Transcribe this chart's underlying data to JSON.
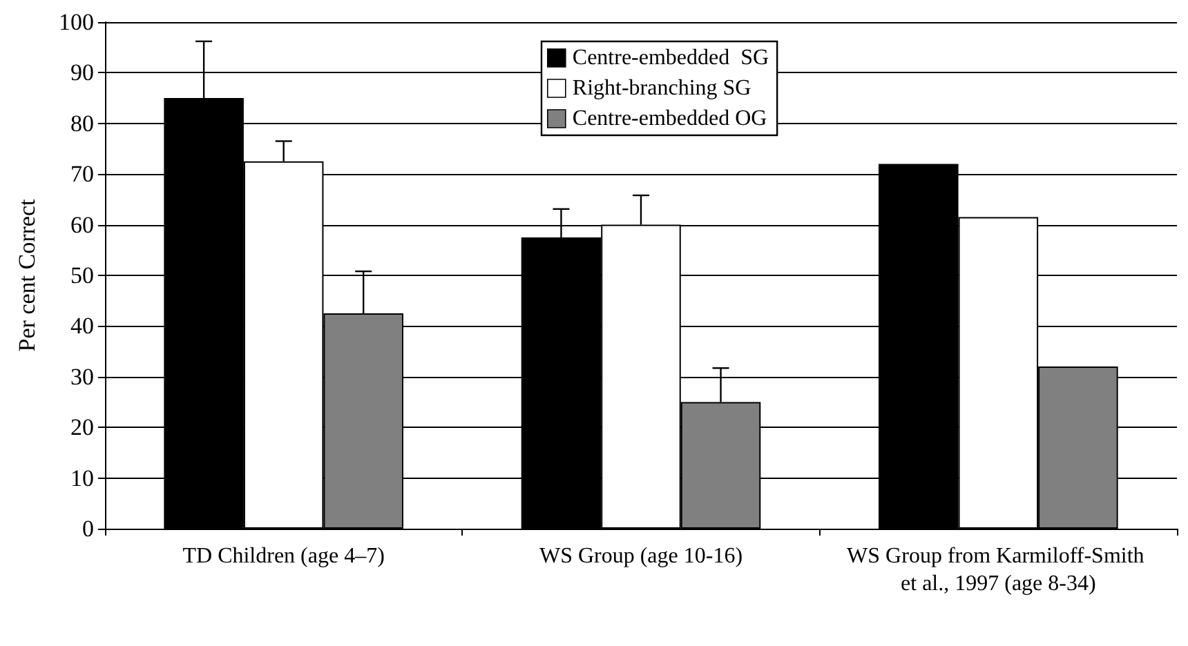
{
  "chart_data": {
    "type": "bar",
    "ylabel": "Per cent Correct",
    "categories": [
      "TD Children (age 4–7)",
      "WS Group (age 10-16)",
      "WS Group from Karmiloff-Smith et al., 1997 (age 8-34)"
    ],
    "series": [
      {
        "name": "Centre-embedded  SG",
        "color": "#000000",
        "values": [
          85,
          57.5,
          72
        ],
        "errors": [
          [
            85,
            96.2
          ],
          [
            57.5,
            63.1
          ],
          null
        ]
      },
      {
        "name": "Right-branching SG",
        "color": "#ffffff",
        "values": [
          72.5,
          60,
          61.5
        ],
        "errors": [
          [
            72.5,
            76.5
          ],
          [
            60,
            65.8
          ],
          null
        ]
      },
      {
        "name": "Centre-embedded OG",
        "color": "#808080",
        "values": [
          42.5,
          25,
          32
        ],
        "errors": [
          [
            42.5,
            50.8
          ],
          [
            25,
            31.7
          ],
          null
        ]
      }
    ],
    "ylim": [
      0,
      100
    ],
    "yticks": [
      0,
      10,
      20,
      30,
      40,
      50,
      60,
      70,
      80,
      90,
      100
    ],
    "grid": "y",
    "legend": "top"
  }
}
